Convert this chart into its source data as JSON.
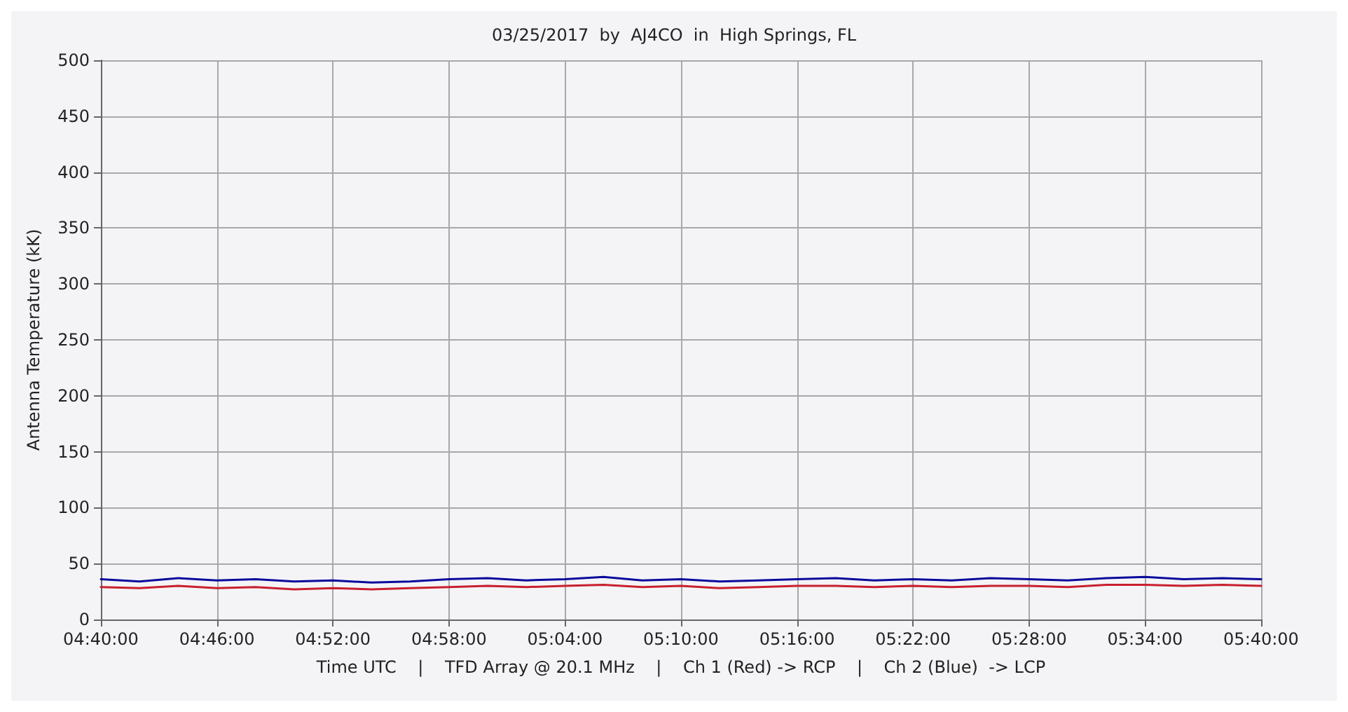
{
  "chart_data": {
    "type": "line",
    "title": "03/25/2017  by  AJ4CO  in  High Springs, FL",
    "xlabel": "Time UTC    |    TFD Array @ 20.1 MHz    |    Ch 1 (Red) -> RCP    |    Ch 2 (Blue)  -> LCP",
    "ylabel": "Antenna Temperature (kK)",
    "x": [
      4.6667,
      4.7,
      4.7333,
      4.7667,
      4.8,
      4.8333,
      4.8667,
      4.9,
      4.9333,
      4.9667,
      5.0,
      5.0333,
      5.0667,
      5.1,
      5.1333,
      5.1667,
      5.2,
      5.2333,
      5.2667,
      5.3,
      5.3333,
      5.3667,
      5.4,
      5.4333,
      5.4667,
      5.5,
      5.5333,
      5.5667,
      5.6,
      5.6333,
      5.6667
    ],
    "series": [
      {
        "color": "#0a0a9c",
        "values": [
          36,
          34,
          37,
          35,
          36,
          34,
          35,
          33,
          34,
          36,
          37,
          35,
          36,
          38,
          35,
          36,
          34,
          35,
          36,
          37,
          35,
          36,
          35,
          37,
          36,
          35,
          37,
          38,
          36,
          37,
          36
        ]
      },
      {
        "color": "#c8202e",
        "values": [
          29,
          28,
          30,
          28,
          29,
          27,
          28,
          27,
          28,
          29,
          30,
          29,
          30,
          31,
          29,
          30,
          28,
          29,
          30,
          30,
          29,
          30,
          29,
          30,
          30,
          29,
          31,
          31,
          30,
          31,
          30
        ]
      }
    ],
    "xlim": [
      4.6667,
      5.6667
    ],
    "xticks": [
      {
        "value": 4.6667,
        "label": "04:40:00"
      },
      {
        "value": 4.7667,
        "label": "04:46:00"
      },
      {
        "value": 4.8667,
        "label": "04:52:00"
      },
      {
        "value": 4.9667,
        "label": "04:58:00"
      },
      {
        "value": 5.0667,
        "label": "05:04:00"
      },
      {
        "value": 5.1667,
        "label": "05:10:00"
      },
      {
        "value": 5.2667,
        "label": "05:16:00"
      },
      {
        "value": 5.3667,
        "label": "05:22:00"
      },
      {
        "value": 5.4667,
        "label": "05:28:00"
      },
      {
        "value": 5.5667,
        "label": "05:34:00"
      },
      {
        "value": 5.6667,
        "label": "05:40:00"
      }
    ],
    "ylim": [
      0,
      500
    ],
    "yticks": [
      0,
      50,
      100,
      150,
      200,
      250,
      300,
      350,
      400,
      450,
      500
    ],
    "grid": true,
    "marker": "none",
    "line_style": "solid"
  }
}
